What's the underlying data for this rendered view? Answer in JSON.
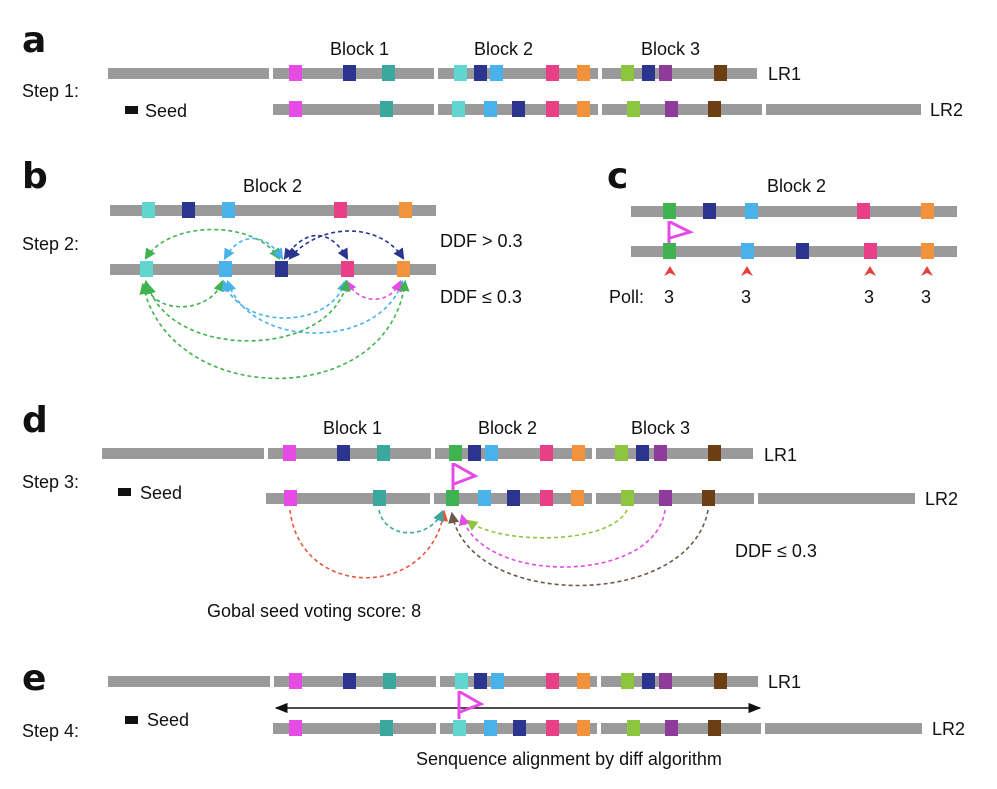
{
  "panels": {
    "a": {
      "letter": "a",
      "step": "Step 1:",
      "seed": "Seed",
      "block1": "Block 1",
      "block2": "Block 2",
      "block3": "Block 3",
      "lr1": "LR1",
      "lr2": "LR2"
    },
    "b": {
      "letter": "b",
      "step": "Step 2:",
      "block": "Block 2",
      "ddf_gt": "DDF > 0.3",
      "ddf_le": "DDF ≤ 0.3"
    },
    "c": {
      "letter": "c",
      "block": "Block 2",
      "poll_label": "Poll:",
      "poll_values": [
        "3",
        "3",
        "3",
        "3"
      ]
    },
    "d": {
      "letter": "d",
      "step": "Step 3:",
      "seed": "Seed",
      "block1": "Block 1",
      "block2": "Block 2",
      "block3": "Block 3",
      "lr1": "LR1",
      "lr2": "LR2",
      "ddf": "DDF ≤ 0.3",
      "score": "Gobal seed voting score: 8"
    },
    "e": {
      "letter": "e",
      "step": "Step 4:",
      "seed": "Seed",
      "lr1": "LR1",
      "lr2": "LR2",
      "caption": "Senquence alignment by diff algorithm"
    }
  },
  "colors": {
    "track": "#9a9a9a",
    "magenta": "#e64be6",
    "teal": "#3aa89c",
    "cyan": "#5fd6cf",
    "navy": "#2b3590",
    "sky": "#4ab2ea",
    "pink": "#e83f86",
    "orange": "#f2923a",
    "lime": "#8cc63f",
    "purple": "#8e3b9c",
    "brown": "#6b3f12",
    "green": "#3fb34f",
    "seed": "#111111",
    "flag": "#e64be6",
    "poll_arrow": "#e34040"
  }
}
